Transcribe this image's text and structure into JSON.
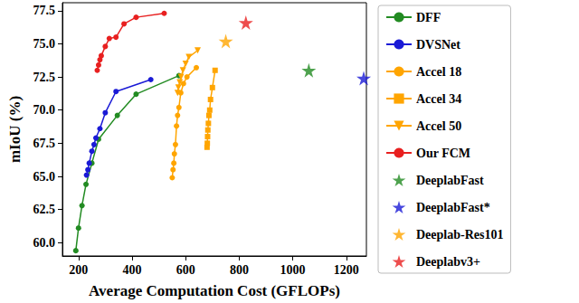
{
  "chart_data": {
    "type": "line",
    "x_label": "Average Computation Cost (GFLOPs)",
    "y_label": "mIoU (%)",
    "xlim": [
      140,
      1275
    ],
    "ylim": [
      59.0,
      78.1
    ],
    "xticks": [
      200,
      400,
      600,
      800,
      1000,
      1200
    ],
    "yticks": [
      {
        "value": 60,
        "label": "60.0"
      },
      62.5,
      {
        "value": 65,
        "label": "65.0"
      },
      67.5,
      {
        "value": 70,
        "label": "70.0"
      },
      72.5,
      {
        "value": 75,
        "label": "75.0"
      },
      77.5
    ],
    "grid": false,
    "legend": "right",
    "series": [
      {
        "name": "DFF",
        "type": "line",
        "marker": "circle",
        "color": "#228b22",
        "x": [
          190,
          200,
          213,
          228,
          250,
          275,
          345,
          415,
          575
        ],
        "values": [
          59.4,
          61.1,
          62.8,
          64.4,
          66.0,
          67.8,
          69.6,
          71.2,
          72.6
        ]
      },
      {
        "name": "DVSNet",
        "type": "line",
        "marker": "circle",
        "color": "#1a1ad6",
        "x": [
          230,
          235,
          240,
          250,
          258,
          265,
          280,
          300,
          340,
          470
        ],
        "values": [
          65.1,
          65.5,
          66.0,
          66.9,
          67.4,
          67.9,
          68.6,
          69.8,
          71.4,
          72.3
        ]
      },
      {
        "name": "Accel 18",
        "type": "line",
        "marker": "circle",
        "color": "#ffa500",
        "x": [
          550,
          553,
          556,
          558,
          562,
          566,
          570,
          575,
          582,
          592,
          605,
          640
        ],
        "values": [
          64.9,
          65.5,
          66.0,
          66.7,
          67.4,
          68.8,
          69.6,
          70.2,
          71.3,
          72.0,
          72.5,
          73.2
        ]
      },
      {
        "name": "Accel 34",
        "type": "line",
        "marker": "square",
        "color": "#ffa500",
        "x": [
          680,
          681,
          682,
          683,
          685,
          687,
          690,
          693,
          700,
          710
        ],
        "values": [
          67.2,
          67.5,
          68.0,
          68.5,
          69.0,
          69.6,
          70.0,
          70.8,
          71.7,
          73.0
        ]
      },
      {
        "name": "Accel 50",
        "type": "line",
        "marker": "triangle_down",
        "color": "#ffa500",
        "x": [
          570,
          573,
          578,
          583,
          590,
          600,
          612,
          645
        ],
        "values": [
          71.3,
          71.7,
          72.1,
          72.5,
          73.0,
          73.5,
          74.0,
          74.5
        ]
      },
      {
        "name": "Our FCM",
        "type": "line",
        "marker": "circle",
        "color": "#e82020",
        "x": [
          270,
          275,
          280,
          285,
          300,
          315,
          340,
          370,
          415,
          520
        ],
        "values": [
          73.0,
          73.4,
          73.8,
          74.1,
          74.8,
          75.4,
          75.5,
          76.5,
          77.0,
          77.3
        ]
      },
      {
        "name": "DeeplabFast",
        "type": "scatter",
        "marker": "star",
        "color": "#228b22",
        "x": [
          1060
        ],
        "values": [
          73.0
        ]
      },
      {
        "name": "DeeplabFast*",
        "type": "scatter",
        "marker": "star",
        "color": "#1a1ad6",
        "x": [
          1265
        ],
        "values": [
          72.4
        ]
      },
      {
        "name": "Deeplab-Res101",
        "type": "scatter",
        "marker": "star",
        "color": "#ffa500",
        "x": [
          750
        ],
        "values": [
          75.2
        ]
      },
      {
        "name": "Deeplabv3+",
        "type": "scatter",
        "marker": "star",
        "color": "#e82020",
        "x": [
          825
        ],
        "values": [
          76.6
        ]
      }
    ]
  }
}
